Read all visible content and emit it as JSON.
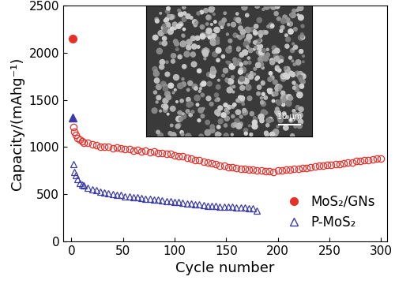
{
  "chart_data": {
    "type": "scatter",
    "x_label": "Cycle number",
    "y_label": "Capacity/(mAhg⁻¹)",
    "annotations": [
      "10 μm"
    ],
    "xlim": [
      -8,
      306
    ],
    "xticks": [
      0,
      50,
      100,
      150,
      200,
      250,
      300
    ],
    "ylim": [
      0,
      2500
    ],
    "yticks": [
      0,
      500,
      1000,
      1500,
      2000,
      2500
    ],
    "grid": false,
    "legend": "lower right",
    "series": [
      {
        "name": "MoS₂/GNs",
        "color": "#e8302a",
        "marker": "circle",
        "x": [
          1,
          2,
          3,
          4,
          6,
          8,
          10,
          12,
          16,
          20,
          24,
          28,
          32,
          36,
          40,
          44,
          48,
          52,
          56,
          60,
          64,
          68,
          72,
          76,
          80,
          84,
          88,
          92,
          96,
          100,
          104,
          108,
          112,
          116,
          120,
          124,
          128,
          132,
          136,
          140,
          144,
          148,
          152,
          156,
          160,
          164,
          168,
          172,
          176,
          180,
          184,
          188,
          192,
          196,
          200,
          204,
          208,
          212,
          216,
          220,
          224,
          228,
          232,
          236,
          240,
          244,
          248,
          252,
          256,
          260,
          264,
          268,
          272,
          276,
          280,
          284,
          288,
          292,
          296,
          300
        ],
        "values": [
          2150,
          1210,
          1160,
          1130,
          1100,
          1080,
          1060,
          1050,
          1045,
          1025,
          1020,
          1005,
          1000,
          1005,
          990,
          995,
          985,
          975,
          980,
          965,
          970,
          955,
          960,
          945,
          950,
          935,
          940,
          925,
          930,
          915,
          905,
          900,
          885,
          880,
          865,
          860,
          845,
          840,
          825,
          820,
          805,
          800,
          790,
          785,
          780,
          770,
          772,
          762,
          760,
          750,
          752,
          742,
          745,
          740,
          750,
          752,
          760,
          762,
          770,
          772,
          780,
          782,
          790,
          792,
          800,
          802,
          810,
          812,
          820,
          822,
          830,
          835,
          840,
          850,
          855,
          860,
          865,
          870,
          875,
          880
        ]
      },
      {
        "name": "P-MoS₂",
        "color": "#3c3ca8",
        "marker": "triangle",
        "x": [
          1,
          2,
          3,
          4,
          6,
          8,
          10,
          12,
          16,
          20,
          24,
          28,
          32,
          36,
          40,
          44,
          48,
          52,
          56,
          60,
          64,
          68,
          72,
          76,
          80,
          84,
          88,
          92,
          96,
          100,
          104,
          108,
          112,
          116,
          120,
          124,
          128,
          132,
          136,
          140,
          144,
          148,
          152,
          156,
          160,
          164,
          168,
          172,
          176,
          180
        ],
        "values": [
          1310,
          820,
          740,
          700,
          660,
          620,
          600,
          590,
          570,
          555,
          540,
          530,
          520,
          510,
          500,
          495,
          490,
          480,
          475,
          470,
          465,
          460,
          455,
          450,
          445,
          440,
          435,
          430,
          425,
          420,
          415,
          410,
          405,
          400,
          395,
          390,
          385,
          380,
          378,
          375,
          372,
          370,
          368,
          365,
          362,
          360,
          358,
          355,
          352,
          330
        ]
      }
    ]
  }
}
